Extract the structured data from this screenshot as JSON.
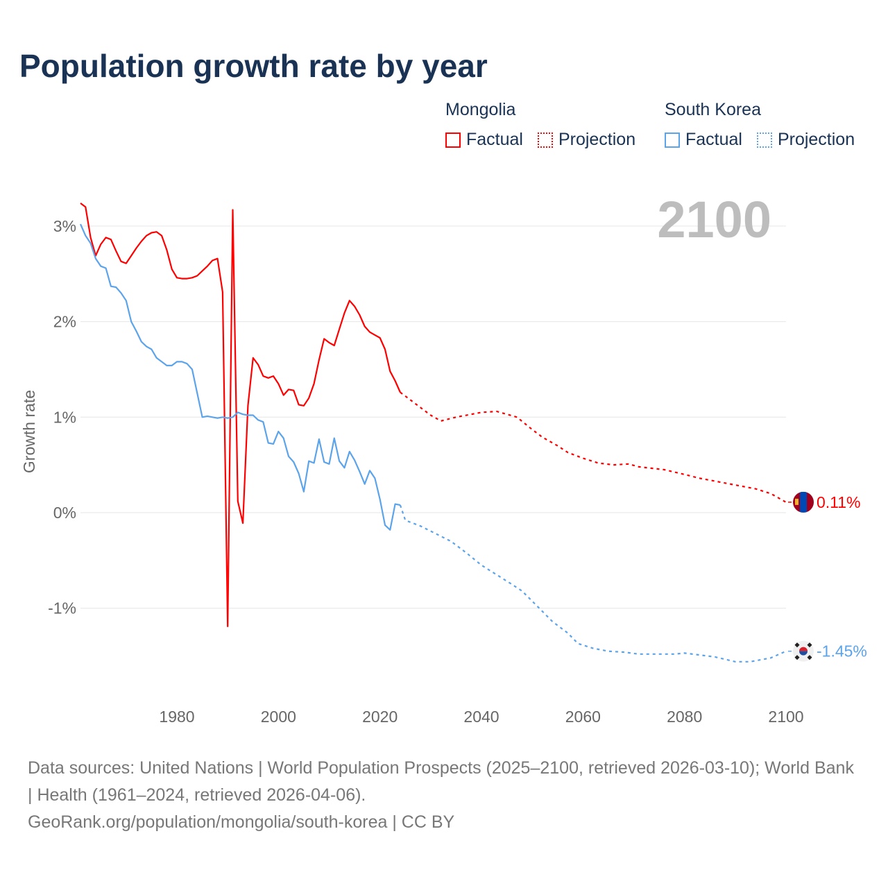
{
  "title": "Population growth rate by year",
  "legend": [
    {
      "name": "Mongolia",
      "color": "#ff0000",
      "factual_label": "Factual",
      "projection_label": "Projection"
    },
    {
      "name": "South Korea",
      "color": "#5ba3ea",
      "factual_label": "Factual",
      "projection_label": "Projection"
    }
  ],
  "year_display": "2100",
  "footer": {
    "sources": "Data sources: United Nations | World Population Prospects (2025–2100, retrieved 2026-03-10); World Bank | Health (1961–2024, retrieved 2026-04-06).",
    "link": "GeoRank.org/population/mongolia/south-korea | CC BY"
  },
  "chart_data": {
    "type": "line",
    "title": "Population growth rate by year",
    "xlabel": "",
    "ylabel": "Growth rate",
    "xlim": [
      1961,
      2100
    ],
    "ylim": [
      -1.8,
      3.3
    ],
    "xticks": [
      1980,
      2000,
      2020,
      2040,
      2060,
      2080,
      2100
    ],
    "xtick_labels": [
      "1980",
      "2000",
      "2020",
      "2040",
      "2060",
      "2080",
      "2100"
    ],
    "yticks": [
      -1,
      0,
      1,
      2,
      3
    ],
    "ytick_labels": [
      "-1%",
      "0%",
      "1%",
      "2%",
      "3%"
    ],
    "grid": true,
    "legend_position": "top-right",
    "series": [
      {
        "name": "Mongolia",
        "color": "#ff0000",
        "end_label": "0.11%",
        "factual": {
          "x": [
            1961,
            1962,
            1963,
            1964,
            1965,
            1966,
            1967,
            1968,
            1969,
            1970,
            1971,
            1972,
            1973,
            1974,
            1975,
            1976,
            1977,
            1978,
            1979,
            1980,
            1981,
            1982,
            1983,
            1984,
            1985,
            1986,
            1987,
            1988,
            1989,
            1990,
            1991,
            1992,
            1993,
            1994,
            1995,
            1996,
            1997,
            1998,
            1999,
            2000,
            2001,
            2002,
            2003,
            2004,
            2005,
            2006,
            2007,
            2008,
            2009,
            2010,
            2011,
            2012,
            2013,
            2014,
            2015,
            2016,
            2017,
            2018,
            2019,
            2020,
            2021,
            2022,
            2023,
            2024
          ],
          "y": [
            3.24,
            3.2,
            2.88,
            2.69,
            2.81,
            2.88,
            2.86,
            2.74,
            2.63,
            2.61,
            2.69,
            2.77,
            2.84,
            2.9,
            2.93,
            2.94,
            2.9,
            2.75,
            2.55,
            2.46,
            2.45,
            2.45,
            2.46,
            2.48,
            2.53,
            2.58,
            2.64,
            2.66,
            2.31,
            -1.19,
            3.17,
            0.12,
            -0.11,
            1.12,
            1.62,
            1.55,
            1.43,
            1.41,
            1.43,
            1.35,
            1.23,
            1.29,
            1.28,
            1.13,
            1.12,
            1.2,
            1.35,
            1.6,
            1.82,
            1.78,
            1.75,
            1.92,
            2.09,
            2.22,
            2.16,
            2.07,
            1.95,
            1.89,
            1.86,
            1.83,
            1.71,
            1.48,
            1.38,
            1.26
          ]
        },
        "projection": {
          "x": [
            2024,
            2025,
            2028,
            2030,
            2032,
            2035,
            2040,
            2043,
            2047,
            2050,
            2052,
            2055,
            2057,
            2060,
            2063,
            2066,
            2069,
            2071,
            2076,
            2080,
            2083,
            2087,
            2090,
            2094,
            2097,
            2100
          ],
          "y": [
            1.26,
            1.22,
            1.1,
            1.02,
            0.96,
            1.0,
            1.05,
            1.06,
            1.0,
            0.87,
            0.79,
            0.7,
            0.63,
            0.57,
            0.52,
            0.5,
            0.51,
            0.48,
            0.45,
            0.4,
            0.36,
            0.32,
            0.29,
            0.25,
            0.2,
            0.11
          ]
        }
      },
      {
        "name": "South Korea",
        "color": "#5ba3ea",
        "end_label": "-1.45%",
        "factual": {
          "x": [
            1961,
            1962,
            1963,
            1964,
            1965,
            1966,
            1967,
            1968,
            1969,
            1970,
            1971,
            1972,
            1973,
            1974,
            1975,
            1976,
            1977,
            1978,
            1979,
            1980,
            1981,
            1982,
            1983,
            1984,
            1985,
            1986,
            1987,
            1988,
            1989,
            1990,
            1991,
            1992,
            1993,
            1994,
            1995,
            1996,
            1997,
            1998,
            1999,
            2000,
            2001,
            2002,
            2003,
            2004,
            2005,
            2006,
            2007,
            2008,
            2009,
            2010,
            2011,
            2012,
            2013,
            2014,
            2015,
            2016,
            2017,
            2018,
            2019,
            2020,
            2021,
            2022,
            2023,
            2024
          ],
          "y": [
            3.02,
            2.9,
            2.82,
            2.66,
            2.58,
            2.56,
            2.37,
            2.36,
            2.3,
            2.22,
            2.0,
            1.9,
            1.79,
            1.74,
            1.71,
            1.62,
            1.58,
            1.54,
            1.54,
            1.58,
            1.58,
            1.56,
            1.5,
            1.25,
            1.0,
            1.01,
            1.0,
            0.99,
            1.0,
            0.99,
            1.0,
            1.05,
            1.03,
            1.02,
            1.02,
            0.97,
            0.95,
            0.73,
            0.72,
            0.85,
            0.78,
            0.59,
            0.53,
            0.41,
            0.22,
            0.54,
            0.52,
            0.77,
            0.53,
            0.51,
            0.78,
            0.54,
            0.47,
            0.64,
            0.55,
            0.43,
            0.3,
            0.44,
            0.36,
            0.14,
            -0.13,
            -0.18,
            0.09,
            0.08
          ]
        },
        "projection": {
          "x": [
            2024,
            2025,
            2028,
            2031,
            2034,
            2037,
            2040,
            2043,
            2046,
            2048,
            2051,
            2054,
            2057,
            2059,
            2062,
            2065,
            2068,
            2071,
            2078,
            2080,
            2086,
            2090,
            2093,
            2097,
            2100
          ],
          "y": [
            0.08,
            -0.08,
            -0.14,
            -0.22,
            -0.3,
            -0.42,
            -0.55,
            -0.65,
            -0.75,
            -0.82,
            -0.98,
            -1.14,
            -1.26,
            -1.37,
            -1.42,
            -1.45,
            -1.46,
            -1.48,
            -1.48,
            -1.47,
            -1.51,
            -1.56,
            -1.56,
            -1.52,
            -1.45
          ]
        }
      }
    ]
  }
}
